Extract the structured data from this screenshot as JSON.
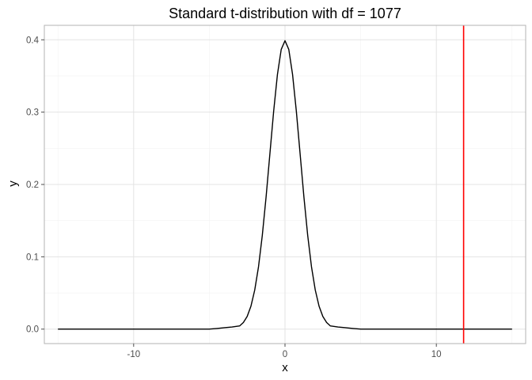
{
  "chart_data": {
    "type": "line",
    "title": "Standard t-distribution with df = 1077",
    "xlabel": "x",
    "ylabel": "y",
    "xlim": [
      -15.9,
      15.9
    ],
    "ylim": [
      -0.02,
      0.42
    ],
    "x_ticks": [
      {
        "value": -10,
        "label": "-10"
      },
      {
        "value": 0,
        "label": "0"
      },
      {
        "value": 10,
        "label": "10"
      }
    ],
    "y_ticks": [
      {
        "value": 0.0,
        "label": "0.0"
      },
      {
        "value": 0.1,
        "label": "0.1"
      },
      {
        "value": 0.2,
        "label": "0.2"
      },
      {
        "value": 0.3,
        "label": "0.3"
      },
      {
        "value": 0.4,
        "label": "0.4"
      }
    ],
    "minor_x": [
      -15,
      -5,
      5,
      15
    ],
    "minor_y": [
      0.05,
      0.15,
      0.25,
      0.35
    ],
    "grid": true,
    "series": [
      {
        "color": "#000000",
        "x": [
          -15,
          -5,
          -4.5,
          -4,
          -3.5,
          -3,
          -2.75,
          -2.5,
          -2.25,
          -2,
          -1.75,
          -1.5,
          -1.25,
          -1,
          -0.75,
          -0.5,
          -0.25,
          0,
          0.25,
          0.5,
          0.75,
          1,
          1.25,
          1.5,
          1.75,
          2,
          2.25,
          2.5,
          2.75,
          3,
          3.5,
          4,
          4.5,
          5,
          15
        ],
        "y": [
          0,
          0,
          0.0009,
          0.0019,
          0.0029,
          0.0044,
          0.0091,
          0.0175,
          0.0317,
          0.054,
          0.0862,
          0.1295,
          0.1826,
          0.242,
          0.3011,
          0.352,
          0.3867,
          0.3988,
          0.3867,
          0.352,
          0.3011,
          0.242,
          0.1826,
          0.1295,
          0.0862,
          0.054,
          0.0317,
          0.0175,
          0.0091,
          0.0044,
          0.0029,
          0.0019,
          0.0009,
          0,
          0
        ]
      }
    ],
    "vline": {
      "x": 11.8,
      "color": "#ff0000"
    }
  }
}
